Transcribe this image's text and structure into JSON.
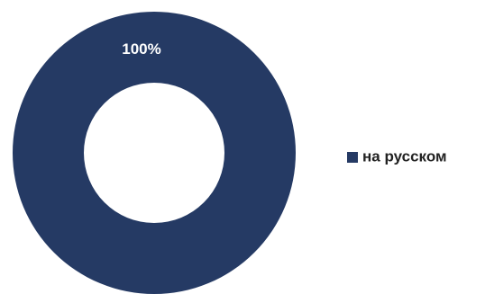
{
  "chart_data": {
    "type": "donut",
    "categories": [
      "на русском"
    ],
    "values": [
      100
    ],
    "value_labels": [
      "100%"
    ],
    "colors": [
      "#253a64"
    ]
  }
}
